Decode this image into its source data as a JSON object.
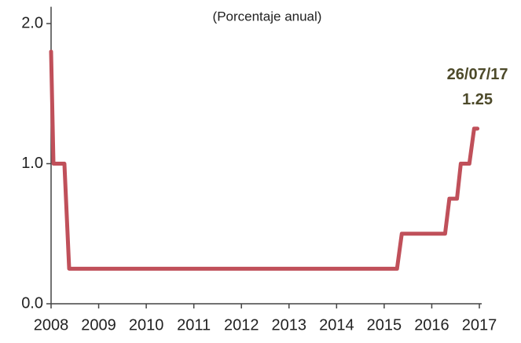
{
  "chart_data": {
    "type": "line",
    "subtitle": "(Porcentaje anual)",
    "x": [
      2008,
      2008.05,
      2008.28,
      2008.38,
      2015.27,
      2015.37,
      2016.28,
      2016.37,
      2016.53,
      2016.61,
      2016.79,
      2016.89,
      2016.96
    ],
    "values": [
      1.8,
      1.0,
      1.0,
      0.25,
      0.25,
      0.5,
      0.5,
      0.75,
      0.75,
      1.0,
      1.0,
      1.25,
      1.25
    ],
    "color": "#c0505a",
    "xlim": [
      2008,
      2017
    ],
    "xticks": [
      2008,
      2009,
      2010,
      2011,
      2012,
      2013,
      2014,
      2015,
      2016,
      2017
    ],
    "ylim": [
      0,
      2.12
    ],
    "yticks": [
      {
        "value": 0,
        "label": "0.0"
      },
      {
        "value": 1,
        "label": "1.0"
      },
      {
        "value": 2,
        "label": "2.0"
      }
    ],
    "grid": false,
    "annotation": {
      "label": "26/07/17",
      "value": 1.25
    }
  }
}
